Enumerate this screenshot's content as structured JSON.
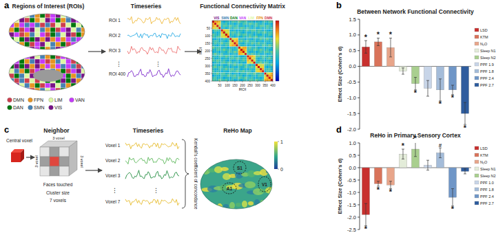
{
  "chart_data": [
    {
      "type": "bar",
      "title": "Between Network Functional Connectivity",
      "ylabel": "Effect Size (Cohen's d)",
      "categories": [
        "LSD",
        "KTM",
        "N₂O",
        "Sleep N1",
        "Sleep N2",
        "PPF 1.9",
        "PPF 1.8",
        "PPF 2.4",
        "PPF 2.7"
      ],
      "values": [
        0.62,
        0.78,
        0.6,
        -0.15,
        -0.55,
        -0.7,
        -0.75,
        -0.75,
        -1.5
      ],
      "errors": [
        0.2,
        0.12,
        0.3,
        0.1,
        0.2,
        0.25,
        0.35,
        0.15,
        0.35
      ],
      "significance": [
        "*",
        "*",
        "*",
        null,
        "*",
        null,
        "*",
        "*",
        "*"
      ],
      "colors": [
        "#c8302e",
        "#d9735a",
        "#e8a58a",
        "#e3ecd9",
        "#a9cf8f",
        "#c8d5e8",
        "#a4bcd9",
        "#6f96c7",
        "#2e5c9e"
      ],
      "ylim": [
        -2.0,
        1.5
      ],
      "yticks": [
        {
          "value": -2.0,
          "label": "-2.0"
        },
        -1.5,
        {
          "value": -1.0,
          "label": "-1.0"
        },
        -0.5,
        {
          "value": 0.0,
          "label": "0.0"
        },
        0.5,
        {
          "value": 1.0,
          "label": "1.0"
        },
        1.5
      ],
      "legend": "right",
      "tick_labels": "y"
    },
    {
      "type": "bar",
      "title": "ReHo  in Primary Sensory Cortex",
      "ylabel": "Effect Size (Cohen's d)",
      "categories": [
        "LSD",
        "KTM",
        "N₂O",
        "Sleep N1",
        "Sleep N2",
        "PPF 1.0",
        "PPF 1.8",
        "PPF 2.4",
        "PPF 2.7"
      ],
      "values": [
        -1.9,
        -0.65,
        -0.7,
        0.55,
        0.75,
        0.1,
        0.6,
        -1.2,
        -0.15
      ],
      "errors": [
        0.45,
        0.1,
        0.15,
        0.2,
        0.3,
        0.2,
        0.2,
        0.35,
        0.1
      ],
      "significance": [
        "*",
        "*",
        "*",
        "*",
        "*",
        null,
        "#",
        "*",
        null
      ],
      "colors": [
        "#c8302e",
        "#d9735a",
        "#e8a58a",
        "#e3ecd9",
        "#a9cf8f",
        "#c8d5e8",
        "#a4bcd9",
        "#6f96c7",
        "#2e5c9e"
      ],
      "ylim": [
        -2.5,
        1.0
      ],
      "yticks": [
        -2.5,
        {
          "value": -2.0,
          "label": "-2.0"
        },
        -1.5,
        {
          "value": -1.0,
          "label": "-1.0"
        },
        -0.5,
        {
          "value": 0.0,
          "label": "0.0"
        },
        0.5,
        {
          "value": 1.0,
          "label": "1.0"
        }
      ],
      "legend": "right",
      "tick_labels": "y"
    }
  ],
  "panel_letters": [
    "a",
    "b",
    "c",
    "d"
  ],
  "panel_a": {
    "title": "Regions of Interest (ROIs)",
    "networks": [
      {
        "name": "DMN",
        "color": "#cd3e4e"
      },
      {
        "name": "FPN",
        "color": "#e69422"
      },
      {
        "name": "LIM",
        "color": "#dcf8a4"
      },
      {
        "name": "VAN",
        "color": "#c43afa"
      },
      {
        "name": "DAN",
        "color": "#00760e"
      },
      {
        "name": "SMN",
        "color": "#4682b4"
      },
      {
        "name": "VIS",
        "color": "#781286"
      }
    ],
    "timeseries": {
      "title": "Timeseries",
      "labels": [
        "ROI 1",
        "ROI 2",
        "ROI 3",
        "ROI 400"
      ],
      "ellipsis": "⋮"
    },
    "matrix": {
      "title": "Functional Connectivity Matrix",
      "networks": [
        "VIS",
        "SMN",
        "DAN",
        "VAN",
        "LIM",
        "FPN",
        "DMN"
      ],
      "lim": [
        0,
        400
      ],
      "ticks": [
        50,
        100,
        150,
        200,
        250,
        300,
        350,
        400
      ],
      "xlabel": "ROI",
      "ylabel": "ROI"
    }
  },
  "panel_c": {
    "title": "Neighbor",
    "central": "Central voxel",
    "dimension": "3 voxel",
    "faces": "Faces touched",
    "cluster_label": "Cluster size",
    "cluster_size": "7 voxels",
    "timeseries": {
      "title": "Timeseries",
      "labels": [
        "Voxel 1",
        "Voxel 2",
        "Voxel 3",
        "Voxel 7"
      ],
      "ellipsis": "⋮"
    },
    "method": "Kendall's coefficient of concordance",
    "map": {
      "title": "ReHo Map",
      "regions": [
        "S1",
        "A1",
        "V1"
      ],
      "colorbar": {
        "lim": [
          0,
          1
        ],
        "ticks": [
          0,
          1
        ]
      }
    }
  }
}
